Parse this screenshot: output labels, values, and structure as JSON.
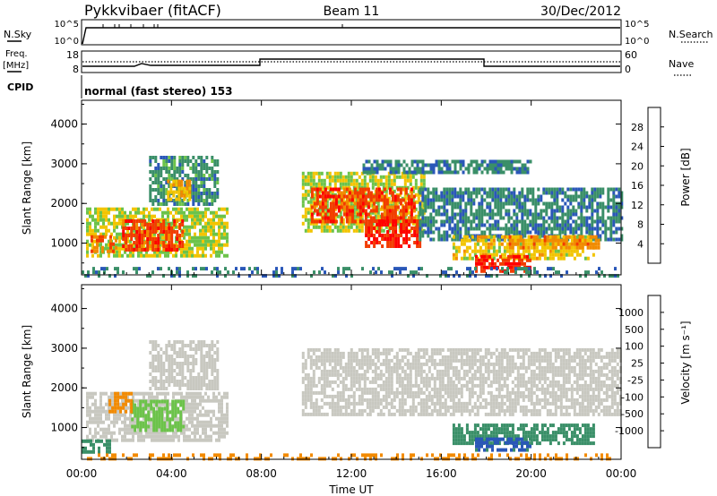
{
  "header": {
    "station": "Pykkvibaer (fitACF)",
    "beam": "Beam 11",
    "date": "30/Dec/2012"
  },
  "params": {
    "nsky_label": "N.Sky",
    "nsky_ticks": [
      "10^5",
      "10^0"
    ],
    "nsearch_label": "N.Search",
    "nsearch_ticks": [
      "10^5",
      "10^0"
    ],
    "freq_label": "Freq.",
    "freq_unit": "[MHz]",
    "freq_ticks": [
      "18",
      "8"
    ],
    "nave_label": "Nave",
    "nave_ticks": [
      "60",
      "0"
    ],
    "cpid_label": "CPID",
    "cpid_value": "normal (fast stereo) 153"
  },
  "colors": {
    "power": [
      "#0000ff",
      "#2a57b8",
      "#3a8f68",
      "#6cc34a",
      "#f2c400",
      "#f28a00",
      "#f23c00",
      "#ff0000"
    ],
    "velocity": [
      "#ff0000",
      "#f23c00",
      "#f28a00",
      "#f2b000",
      "#c8c8c0",
      "#6cc34a",
      "#3a8f68",
      "#2a57b8",
      "#0000ff"
    ]
  },
  "chart_data": [
    {
      "type": "heatmap",
      "panel": "power",
      "ylabel": "Slant Range [km]",
      "xlabel": "",
      "yticks": [
        "1000",
        "2000",
        "3000",
        "4000"
      ],
      "ylim": [
        200,
        4600
      ],
      "xlim": [
        0,
        24
      ],
      "colorbar_label": "Power [dB]",
      "colorbar_ticks": [
        "4",
        "8",
        "12",
        "16",
        "20",
        "24",
        "28"
      ],
      "regions": [
        {
          "t0": 0.2,
          "t1": 6.5,
          "r0": 700,
          "r1": 1900,
          "value": 16
        },
        {
          "t0": 1.8,
          "t1": 4.5,
          "r0": 800,
          "r1": 1600,
          "value": 26
        },
        {
          "t0": 0.4,
          "t1": 1.5,
          "r0": 800,
          "r1": 1200,
          "value": 24
        },
        {
          "t0": 3.0,
          "t1": 6.0,
          "r0": 2000,
          "r1": 3200,
          "value": 10
        },
        {
          "t0": 3.8,
          "t1": 4.8,
          "r0": 2100,
          "r1": 2600,
          "value": 20
        },
        {
          "t0": 9.8,
          "t1": 15.3,
          "r0": 1300,
          "r1": 2800,
          "value": 16
        },
        {
          "t0": 10.2,
          "t1": 14.8,
          "r0": 1500,
          "r1": 2400,
          "value": 26
        },
        {
          "t0": 12.6,
          "t1": 15.0,
          "r0": 900,
          "r1": 1600,
          "value": 28
        },
        {
          "t0": 15.0,
          "t1": 24.0,
          "r0": 1100,
          "r1": 2400,
          "value": 9
        },
        {
          "t0": 16.5,
          "t1": 22.8,
          "r0": 600,
          "r1": 1200,
          "value": 18
        },
        {
          "t0": 17.5,
          "t1": 20.0,
          "r0": 300,
          "r1": 700,
          "value": 28
        },
        {
          "t0": 19.0,
          "t1": 23.0,
          "r0": 900,
          "r1": 1200,
          "value": 22
        },
        {
          "t0": 12.5,
          "t1": 20.0,
          "r0": 2800,
          "r1": 3100,
          "value": 9
        },
        {
          "t0": 0.0,
          "t1": 24.0,
          "r0": 200,
          "r1": 400,
          "value": 8
        }
      ]
    },
    {
      "type": "heatmap",
      "panel": "velocity",
      "ylabel": "Slant Range [km]",
      "xlabel": "Time UT",
      "yticks": [
        "1000",
        "2000",
        "3000",
        "4000"
      ],
      "ylim": [
        200,
        4600
      ],
      "xlim": [
        0,
        24
      ],
      "xticks": [
        "00:00",
        "04:00",
        "08:00",
        "12:00",
        "16:00",
        "20:00",
        "00:00"
      ],
      "colorbar_label": "Velocity [m s⁻¹]",
      "colorbar_ticks": [
        "1000",
        "500",
        "100",
        "25",
        "-25",
        "-100",
        "-500",
        "-1000"
      ],
      "regions": [
        {
          "t0": 0.2,
          "t1": 6.5,
          "r0": 700,
          "r1": 1900,
          "value": 0
        },
        {
          "t0": 2.2,
          "t1": 4.5,
          "r0": 900,
          "r1": 1700,
          "value": 60
        },
        {
          "t0": 1.2,
          "t1": 2.2,
          "r0": 1400,
          "r1": 1900,
          "value": -80
        },
        {
          "t0": 3.0,
          "t1": 6.0,
          "r0": 2000,
          "r1": 3200,
          "value": 0
        },
        {
          "t0": 9.8,
          "t1": 24.0,
          "r0": 1300,
          "r1": 3000,
          "value": 0
        },
        {
          "t0": 16.5,
          "t1": 22.8,
          "r0": 600,
          "r1": 1100,
          "value": 150
        },
        {
          "t0": 17.5,
          "t1": 20.0,
          "r0": 400,
          "r1": 750,
          "value": 600
        },
        {
          "t0": 0.0,
          "t1": 1.2,
          "r0": 350,
          "r1": 700,
          "value": 150
        },
        {
          "t0": 0.0,
          "t1": 24.0,
          "r0": 200,
          "r1": 350,
          "value": -60
        }
      ]
    }
  ]
}
